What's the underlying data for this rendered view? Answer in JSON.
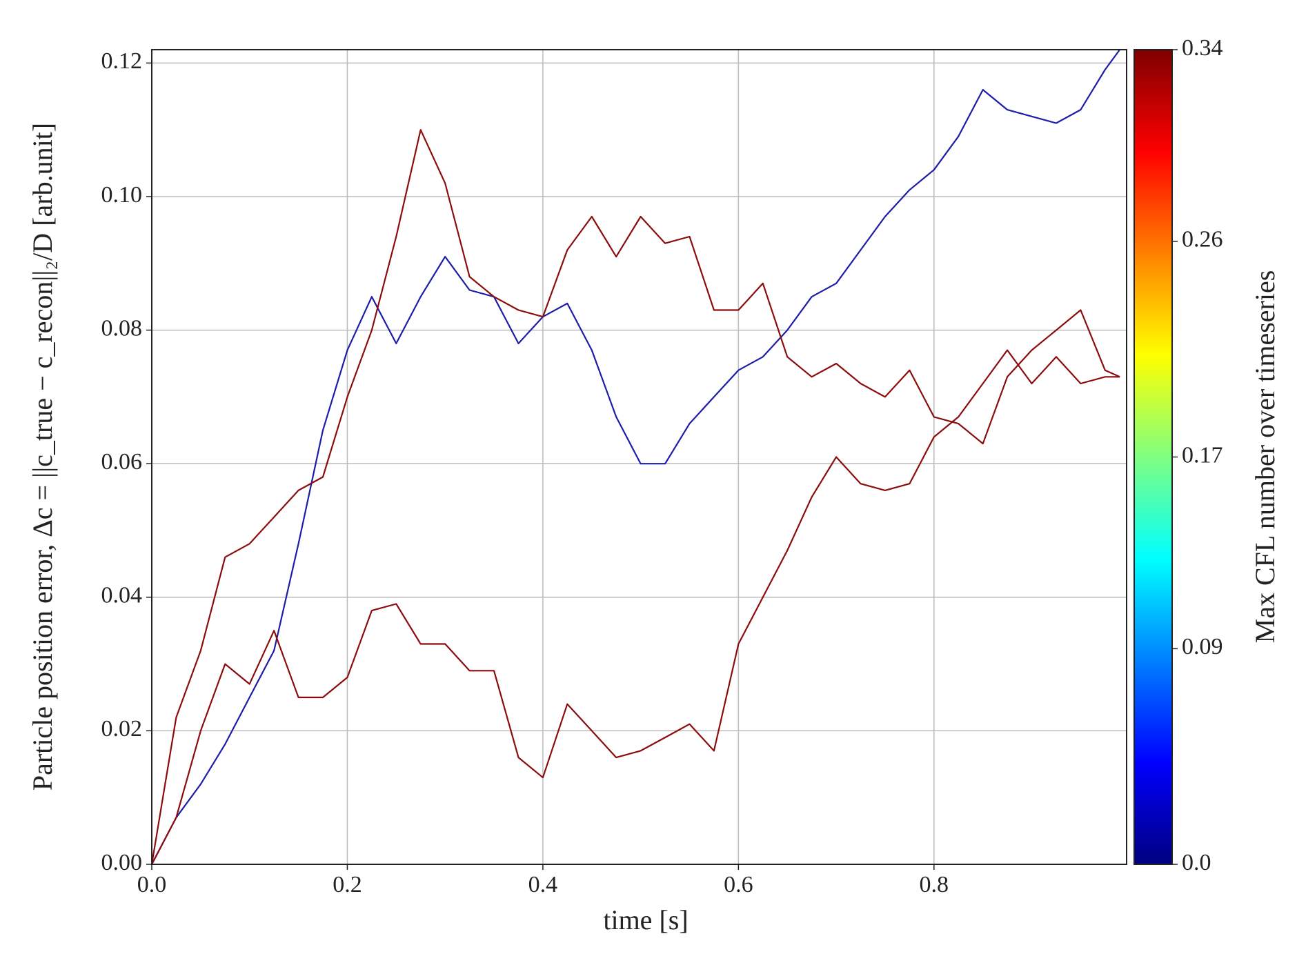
{
  "chart_data": {
    "type": "line",
    "x_label": "time [s]",
    "y_label": "Particle position error, Δc = ||c_true − c_recon||₂/D [arb.unit]",
    "x": [
      0,
      0.025,
      0.05,
      0.075,
      0.1,
      0.125,
      0.15,
      0.175,
      0.2,
      0.225,
      0.25,
      0.275,
      0.3,
      0.325,
      0.35,
      0.375,
      0.4,
      0.425,
      0.45,
      0.475,
      0.5,
      0.525,
      0.55,
      0.575,
      0.6,
      0.625,
      0.65,
      0.675,
      0.7,
      0.725,
      0.75,
      0.775,
      0.8,
      0.825,
      0.85,
      0.875,
      0.9,
      0.925,
      0.95,
      0.975,
      0.99
    ],
    "series": [
      {
        "color": "#1c1ca8",
        "values": [
          0,
          0.007,
          0.012,
          0.018,
          0.025,
          0.032,
          0.048,
          0.065,
          0.077,
          0.085,
          0.078,
          0.085,
          0.091,
          0.086,
          0.085,
          0.078,
          0.082,
          0.084,
          0.077,
          0.067,
          0.06,
          0.06,
          0.066,
          0.07,
          0.074,
          0.076,
          0.08,
          0.085,
          0.087,
          0.092,
          0.097,
          0.101,
          0.104,
          0.109,
          0.116,
          0.113,
          0.112,
          0.111,
          0.113,
          0.119,
          0.122
        ]
      },
      {
        "color": "#8b0c0c",
        "values": [
          0,
          0.022,
          0.032,
          0.046,
          0.048,
          0.052,
          0.056,
          0.058,
          0.07,
          0.08,
          0.094,
          0.11,
          0.102,
          0.088,
          0.085,
          0.083,
          0.082,
          0.092,
          0.097,
          0.091,
          0.097,
          0.093,
          0.094,
          0.083,
          0.083,
          0.087,
          0.076,
          0.073,
          0.075,
          0.072,
          0.07,
          0.074,
          0.067,
          0.066,
          0.063,
          0.073,
          0.077,
          0.08,
          0.083,
          0.074,
          0.073
        ]
      },
      {
        "color": "#8b0c0c",
        "values": [
          0,
          0.007,
          0.02,
          0.03,
          0.027,
          0.035,
          0.025,
          0.025,
          0.028,
          0.038,
          0.039,
          0.033,
          0.033,
          0.029,
          0.029,
          0.016,
          0.013,
          0.024,
          0.02,
          0.016,
          0.017,
          0.019,
          0.021,
          0.017,
          0.033,
          0.04,
          0.047,
          0.055,
          0.061,
          0.057,
          0.056,
          0.057,
          0.064,
          0.067,
          0.072,
          0.077,
          0.072,
          0.076,
          0.072,
          0.073,
          0.073
        ]
      }
    ],
    "xlim": [
      0,
      0.997
    ],
    "ylim": [
      0,
      0.122
    ],
    "xticks": [
      {
        "value": 0,
        "label": "0.0"
      },
      0.2,
      0.4,
      0.6,
      0.8
    ],
    "yticks": [
      {
        "value": 0,
        "label": "0.00"
      },
      0.02,
      0.04,
      0.06,
      0.08,
      {
        "value": 0.1,
        "label": "0.10"
      },
      0.12
    ],
    "grid": true,
    "colorbar": {
      "label": "Max CFL number over timeseries",
      "lim": [
        0,
        0.34
      ],
      "ticks": [
        {
          "value": 0,
          "label": "0.0"
        },
        0.09,
        0.17,
        0.26,
        0.34
      ],
      "colormap": [
        "#00007f",
        "#0000ff",
        "#0080ff",
        "#00ffff",
        "#80ff80",
        "#ffff00",
        "#ff8000",
        "#ff0000",
        "#7f0000"
      ]
    }
  }
}
